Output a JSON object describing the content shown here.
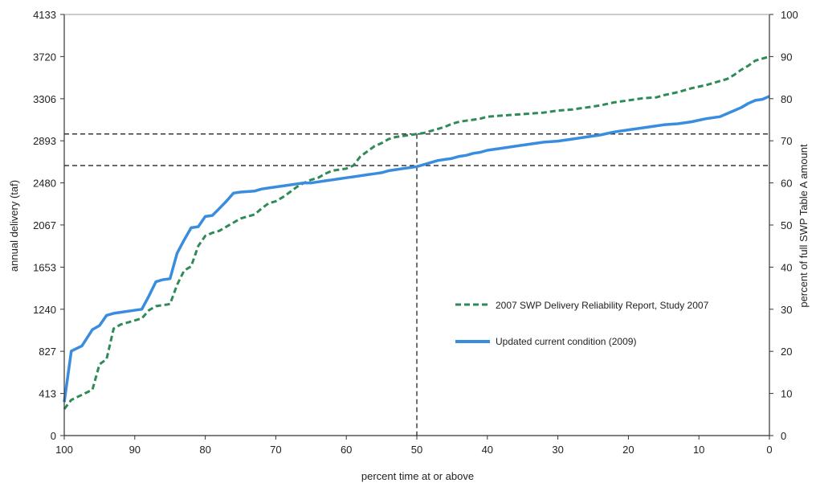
{
  "chart_data": {
    "type": "line",
    "title": "",
    "xlabel": "percent time at or above",
    "ylabel_left": "annual delivery (taf)",
    "ylabel_right": "percent of full SWP Table A amount",
    "x_axis": {
      "reversed": true,
      "xlim": [
        100,
        0
      ],
      "ticks": [
        100,
        90,
        80,
        70,
        60,
        50,
        40,
        30,
        20,
        10,
        0
      ]
    },
    "y_left": {
      "ylim": [
        0,
        4133
      ],
      "ticks": [
        0,
        413,
        827,
        1240,
        1653,
        2067,
        2480,
        2893,
        3306,
        3720,
        4133
      ]
    },
    "y_right": {
      "ylim": [
        0,
        100
      ],
      "ticks": [
        0,
        10,
        20,
        30,
        40,
        50,
        60,
        70,
        80,
        90,
        100
      ]
    },
    "grid": false,
    "legend": {
      "position": "center-right"
    },
    "series": [
      {
        "name": "2007 SWP Delivery Reliability Report, Study 2007",
        "style": "dashed",
        "color": "#2e8b57",
        "x": [
          100,
          99,
          97.5,
          96,
          95,
          94,
          93,
          92,
          91,
          89,
          88,
          87,
          86,
          85,
          84,
          83,
          82,
          81,
          80,
          79,
          78,
          77,
          76,
          75,
          73,
          72,
          71,
          70,
          69,
          68,
          67,
          66,
          65,
          64,
          63,
          62,
          61,
          60,
          59,
          58,
          57,
          56,
          55,
          54,
          53,
          52,
          51,
          50,
          49,
          48,
          47,
          46,
          45,
          44,
          43,
          42,
          41,
          40,
          38,
          36,
          34,
          32,
          30,
          28,
          26,
          24,
          22,
          20,
          18,
          16,
          15,
          13,
          11,
          9,
          7,
          6,
          5,
          4,
          3,
          2,
          1,
          0
        ],
        "y": [
          260,
          350,
          400,
          450,
          700,
          750,
          1050,
          1090,
          1110,
          1150,
          1230,
          1270,
          1280,
          1290,
          1480,
          1620,
          1660,
          1860,
          1960,
          1990,
          2010,
          2050,
          2090,
          2130,
          2170,
          2230,
          2280,
          2300,
          2340,
          2390,
          2440,
          2480,
          2510,
          2530,
          2570,
          2600,
          2610,
          2620,
          2650,
          2740,
          2790,
          2840,
          2870,
          2910,
          2930,
          2940,
          2950,
          2960,
          2970,
          2990,
          3010,
          3030,
          3060,
          3080,
          3090,
          3100,
          3110,
          3130,
          3140,
          3150,
          3160,
          3170,
          3190,
          3200,
          3220,
          3240,
          3270,
          3290,
          3310,
          3320,
          3340,
          3370,
          3410,
          3440,
          3480,
          3500,
          3540,
          3590,
          3630,
          3680,
          3700,
          3720
        ]
      },
      {
        "name": "Updated current condition (2009)",
        "style": "solid",
        "color": "#3a8dde",
        "x": [
          100,
          99,
          97.5,
          96,
          95,
          94,
          93,
          92,
          91,
          89,
          88,
          87,
          86,
          85,
          84,
          83,
          82,
          81,
          80,
          79,
          78,
          77,
          76,
          75,
          73,
          72,
          71,
          70,
          69,
          68,
          67,
          66,
          65,
          64,
          63,
          62,
          61,
          60,
          59,
          58,
          57,
          56,
          55,
          54,
          53,
          52,
          51,
          50,
          49,
          48,
          47,
          46,
          45,
          44,
          43,
          42,
          41,
          40,
          38,
          36,
          34,
          32,
          30,
          28,
          26,
          24,
          22,
          20,
          18,
          16,
          15,
          13,
          11,
          9,
          7,
          6,
          5,
          4,
          3,
          2,
          1,
          0
        ],
        "y": [
          330,
          830,
          880,
          1040,
          1080,
          1180,
          1200,
          1210,
          1220,
          1240,
          1370,
          1510,
          1530,
          1540,
          1790,
          1920,
          2040,
          2050,
          2150,
          2160,
          2230,
          2300,
          2380,
          2390,
          2400,
          2420,
          2430,
          2440,
          2450,
          2460,
          2470,
          2480,
          2480,
          2490,
          2500,
          2510,
          2520,
          2530,
          2540,
          2550,
          2560,
          2570,
          2580,
          2600,
          2610,
          2620,
          2630,
          2640,
          2660,
          2680,
          2700,
          2710,
          2720,
          2740,
          2750,
          2770,
          2780,
          2800,
          2820,
          2840,
          2860,
          2880,
          2890,
          2910,
          2930,
          2950,
          2980,
          3000,
          3020,
          3040,
          3050,
          3060,
          3080,
          3110,
          3130,
          3160,
          3190,
          3220,
          3260,
          3290,
          3300,
          3330
        ]
      }
    ],
    "reference_lines": {
      "horizontal": [
        2960,
        2650
      ],
      "vertical": [
        50
      ]
    }
  }
}
